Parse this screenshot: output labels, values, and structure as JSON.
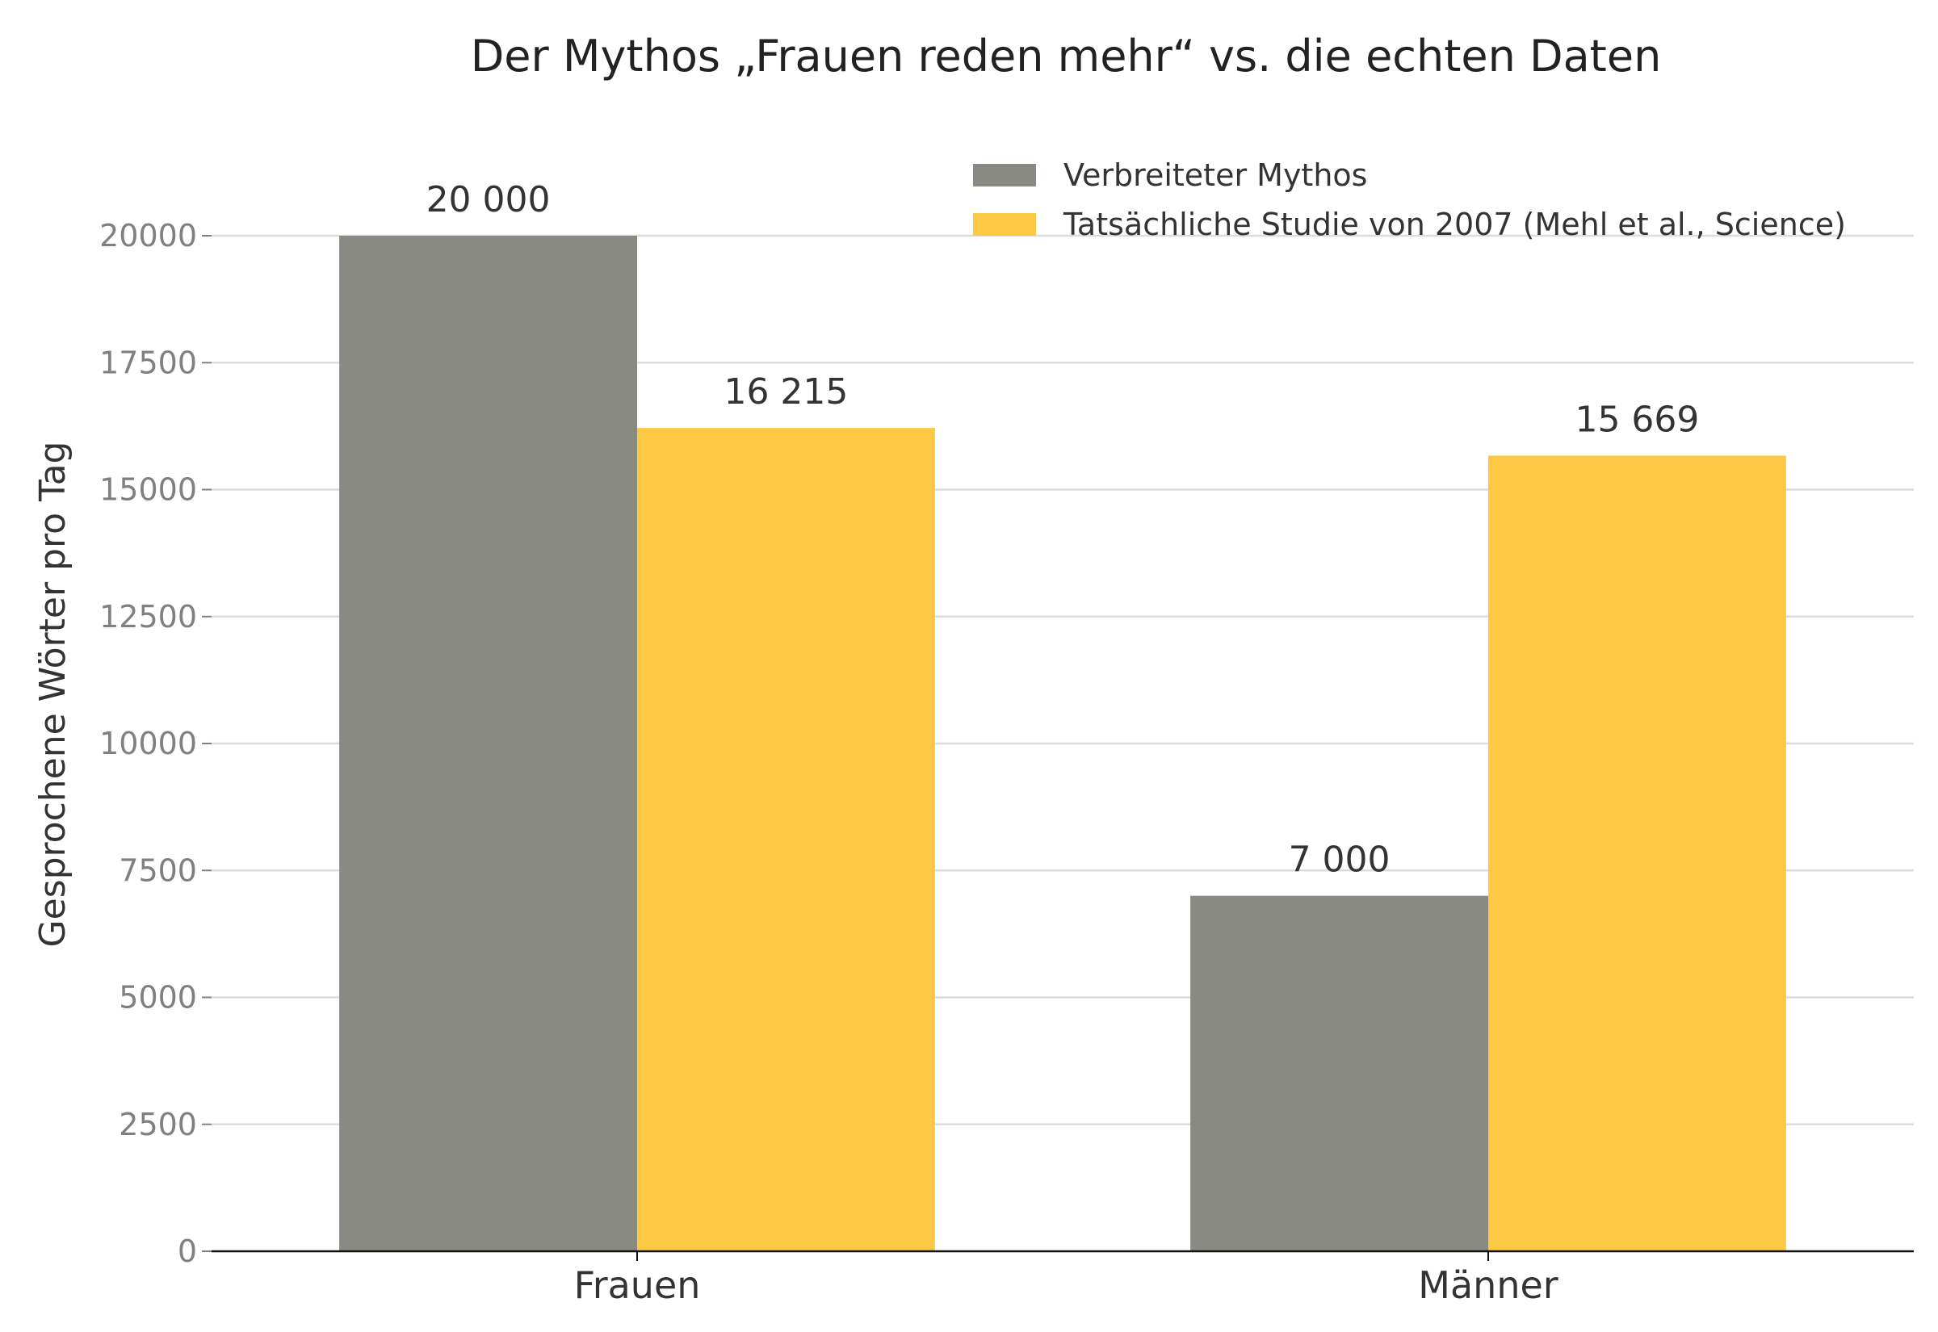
{
  "chart_data": {
    "type": "bar",
    "title": "Der Mythos „Frauen reden mehr“ vs. die echten Daten",
    "ylabel": "Gesprochene Wörter pro Tag",
    "xlabel": "",
    "categories": [
      "Frauen",
      "Männer"
    ],
    "series": [
      {
        "name": "Verbreiteter Mythos",
        "color": "#8a8a84",
        "values": [
          20000,
          7000
        ],
        "labels": [
          "20 000",
          "7 000"
        ]
      },
      {
        "name": "Tatsächliche Studie von 2007 (Mehl et al., Science)",
        "color": "#fdc844",
        "values": [
          16215,
          15669
        ],
        "labels": [
          "16 215",
          "15 669"
        ]
      }
    ],
    "ylim": [
      0,
      20000
    ],
    "yticks": [
      0,
      2500,
      5000,
      7500,
      10000,
      12500,
      15000,
      17500,
      20000
    ],
    "grid": true,
    "legend_position": "top-right"
  }
}
